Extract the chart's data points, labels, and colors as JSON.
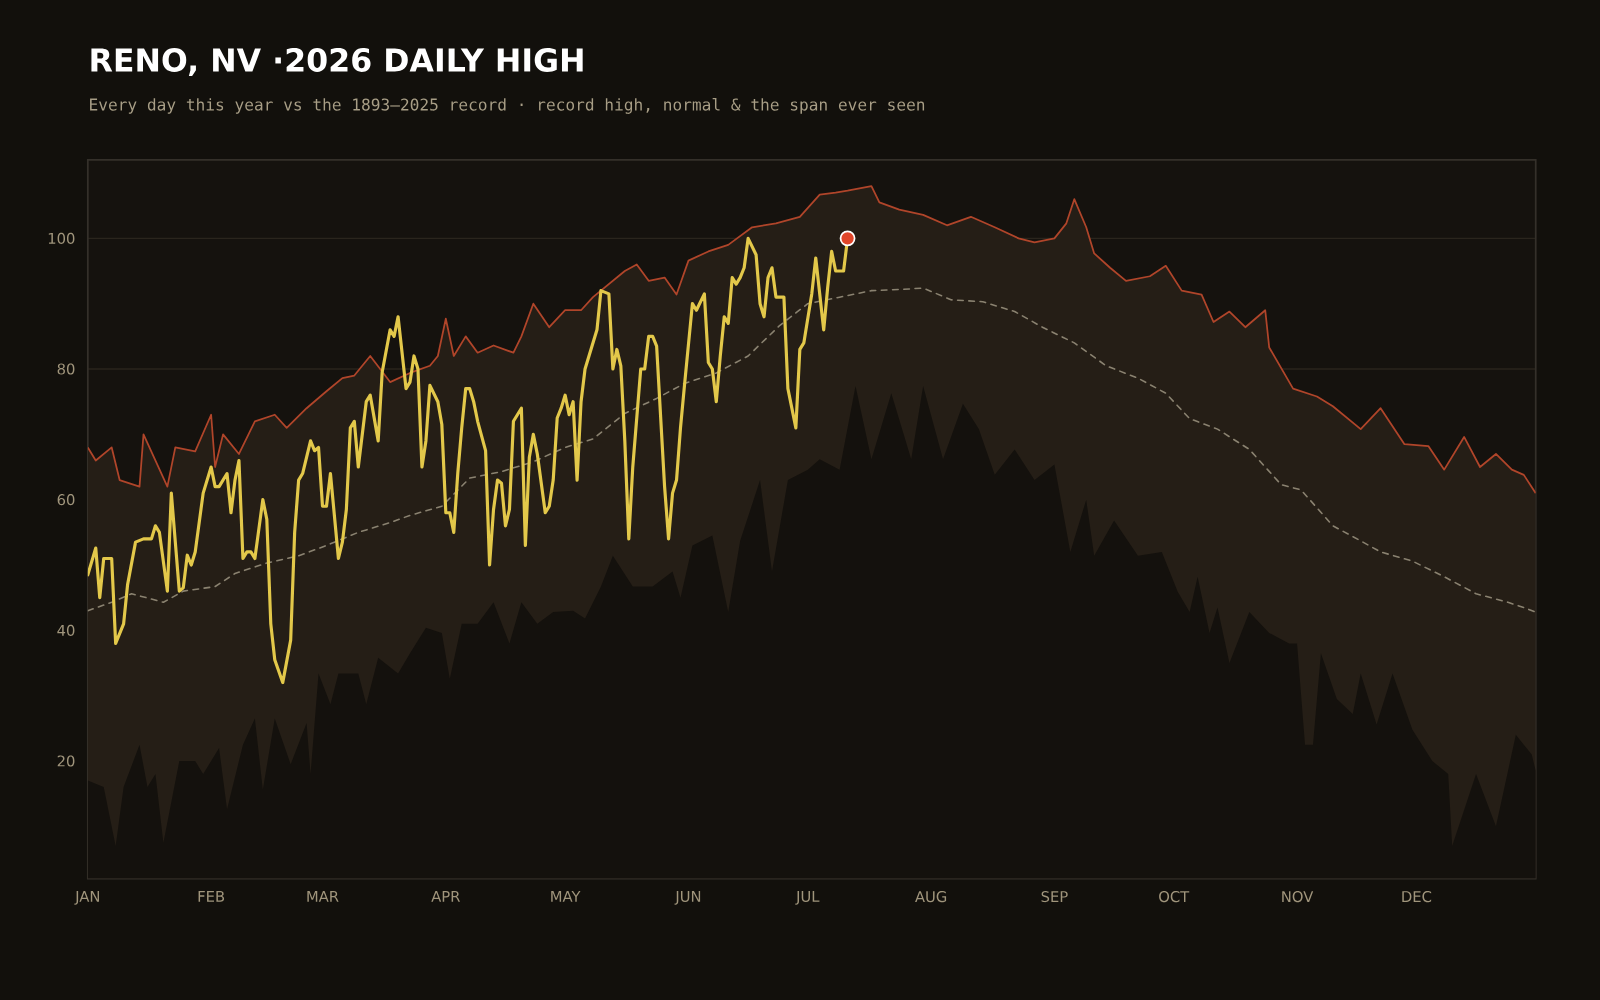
{
  "chart_data": {
    "type": "line",
    "title": "RENO, NV ·2026 DAILY HIGH",
    "subtitle": "Every day this year vs the 1893–2025 record · record high, normal & the span ever seen",
    "xlim": [
      "2026-01-01",
      "2026-12-31"
    ],
    "ylim": [
      2,
      112
    ],
    "xticks": [
      {
        "value": "2026-01-01",
        "label": "JAN"
      },
      {
        "value": "2026-02-01",
        "label": "FEB"
      },
      {
        "value": "2026-03-01",
        "label": "MAR"
      },
      {
        "value": "2026-04-01",
        "label": "APR"
      },
      {
        "value": "2026-05-01",
        "label": "MAY"
      },
      {
        "value": "2026-06-01",
        "label": "JUN"
      },
      {
        "value": "2026-07-01",
        "label": "JUL"
      },
      {
        "value": "2026-08-01",
        "label": "AUG"
      },
      {
        "value": "2026-09-01",
        "label": "SEP"
      },
      {
        "value": "2026-10-01",
        "label": "OCT"
      },
      {
        "value": "2026-11-01",
        "label": "NOV"
      },
      {
        "value": "2026-12-01",
        "label": "DEC"
      }
    ],
    "yticks": [
      20,
      40,
      60,
      80,
      100
    ],
    "grid": "y",
    "series": [
      {
        "type": "area",
        "color": "#b0452a",
        "x": [
          "2026-01-01",
          "2026-01-03",
          "2026-01-07",
          "2026-01-09",
          "2026-01-14",
          "2026-01-15",
          "2026-01-18",
          "2026-01-21",
          "2026-01-23",
          "2026-01-28",
          "2026-02-01",
          "2026-02-02",
          "2026-02-04",
          "2026-02-08",
          "2026-02-12",
          "2026-02-17",
          "2026-02-20",
          "2026-02-25",
          "2026-03-02",
          "2026-03-06",
          "2026-03-09",
          "2026-03-13",
          "2026-03-18",
          "2026-03-23",
          "2026-03-28",
          "2026-03-30",
          "2026-04-01",
          "2026-04-03",
          "2026-04-06",
          "2026-04-09",
          "2026-04-13",
          "2026-04-18",
          "2026-04-20",
          "2026-04-23",
          "2026-04-27",
          "2026-05-01",
          "2026-05-05",
          "2026-05-08",
          "2026-05-16",
          "2026-05-19",
          "2026-05-22",
          "2026-05-26",
          "2026-05-29",
          "2026-06-01",
          "2026-06-06",
          "2026-06-11",
          "2026-06-17",
          "2026-06-23",
          "2026-06-29",
          "2026-07-04",
          "2026-07-08",
          "2026-07-11",
          "2026-07-17",
          "2026-07-19",
          "2026-07-24",
          "2026-07-30",
          "2026-08-05",
          "2026-08-11",
          "2026-08-17",
          "2026-08-23",
          "2026-08-27",
          "2026-09-01",
          "2026-09-04",
          "2026-09-06",
          "2026-09-09",
          "2026-09-11",
          "2026-09-15",
          "2026-09-19",
          "2026-09-25",
          "2026-09-29",
          "2026-10-03",
          "2026-10-08",
          "2026-10-11",
          "2026-10-15",
          "2026-10-19",
          "2026-10-24",
          "2026-10-25",
          "2026-10-31",
          "2026-11-06",
          "2026-11-10",
          "2026-11-17",
          "2026-11-22",
          "2026-11-28",
          "2026-12-04",
          "2026-12-08",
          "2026-12-13",
          "2026-12-17",
          "2026-12-21",
          "2026-12-25",
          "2026-12-28",
          "2026-12-31"
        ],
        "values": [
          68,
          66,
          68,
          63,
          62,
          70,
          66,
          62,
          68,
          67.4,
          73,
          65,
          70,
          67,
          72,
          73,
          71,
          74,
          76.6,
          78.6,
          79,
          82,
          78,
          79.4,
          80.5,
          82,
          87.7,
          82,
          85,
          82.5,
          83.6,
          82.5,
          85,
          90,
          86.4,
          89,
          89,
          91,
          95,
          96,
          93.5,
          94,
          91.4,
          96.6,
          98,
          99,
          101.7,
          102.3,
          103.3,
          106.7,
          107,
          107.3,
          108,
          105.5,
          104.4,
          103.6,
          102,
          103.3,
          101.7,
          100,
          99.4,
          100,
          102.3,
          106,
          101.7,
          97.7,
          95.5,
          93.5,
          94.2,
          95.8,
          92,
          91.4,
          87.2,
          88.8,
          86.4,
          89,
          83.3,
          77,
          75.8,
          74.3,
          70.8,
          74,
          68.5,
          68.2,
          64.6,
          69.6,
          65,
          67,
          64.6,
          63.8,
          61
        ]
      },
      {
        "type": "area",
        "color": "#14110d",
        "x": [
          "2026-01-01",
          "2026-01-05",
          "2026-01-08",
          "2026-01-10",
          "2026-01-14",
          "2026-01-16",
          "2026-01-18",
          "2026-01-20",
          "2026-01-24",
          "2026-01-28",
          "2026-01-30",
          "2026-02-03",
          "2026-02-05",
          "2026-02-09",
          "2026-02-12",
          "2026-02-14",
          "2026-02-17",
          "2026-02-21",
          "2026-02-25",
          "2026-02-26",
          "2026-02-28",
          "2026-03-03",
          "2026-03-05",
          "2026-03-10",
          "2026-03-12",
          "2026-03-15",
          "2026-03-20",
          "2026-03-23",
          "2026-03-27",
          "2026-03-31",
          "2026-04-02",
          "2026-04-05",
          "2026-04-09",
          "2026-04-13",
          "2026-04-17",
          "2026-04-20",
          "2026-04-24",
          "2026-04-28",
          "2026-05-03",
          "2026-05-06",
          "2026-05-10",
          "2026-05-13",
          "2026-05-18",
          "2026-05-23",
          "2026-05-28",
          "2026-05-30",
          "2026-06-02",
          "2026-06-07",
          "2026-06-11",
          "2026-06-14",
          "2026-06-19",
          "2026-06-22",
          "2026-06-26",
          "2026-07-01",
          "2026-07-04",
          "2026-07-09",
          "2026-07-13",
          "2026-07-17",
          "2026-07-22",
          "2026-07-27",
          "2026-07-30",
          "2026-08-04",
          "2026-08-09",
          "2026-08-13",
          "2026-08-17",
          "2026-08-22",
          "2026-08-27",
          "2026-09-01",
          "2026-09-05",
          "2026-09-09",
          "2026-09-11",
          "2026-09-16",
          "2026-09-22",
          "2026-09-28",
          "2026-10-02",
          "2026-10-05",
          "2026-10-07",
          "2026-10-10",
          "2026-10-12",
          "2026-10-15",
          "2026-10-20",
          "2026-10-25",
          "2026-10-30",
          "2026-11-01",
          "2026-11-03",
          "2026-11-05",
          "2026-11-07",
          "2026-11-11",
          "2026-11-15",
          "2026-11-17",
          "2026-11-21",
          "2026-11-25",
          "2026-11-30",
          "2026-12-05",
          "2026-12-09",
          "2026-12-10",
          "2026-12-16",
          "2026-12-21",
          "2026-12-26",
          "2026-12-30",
          "2026-12-31"
        ],
        "values": [
          17,
          16,
          7,
          16,
          22.5,
          16,
          18,
          7.5,
          20,
          20,
          18,
          22,
          12.6,
          22.5,
          26.5,
          15.6,
          26.5,
          19.5,
          25.8,
          18,
          33.4,
          28.7,
          33.4,
          33.4,
          28.7,
          35.8,
          33.4,
          36.5,
          40.4,
          39.6,
          32.6,
          41,
          41,
          44.3,
          38,
          44.3,
          41,
          42.8,
          43,
          41.8,
          46.7,
          51.4,
          46.7,
          46.7,
          49,
          45,
          53,
          54.5,
          42.8,
          53.7,
          63,
          49,
          63,
          64.6,
          66.2,
          64.6,
          77.4,
          66.2,
          76.3,
          66.2,
          77.4,
          66.2,
          74.7,
          70.8,
          63.8,
          67.7,
          63,
          65.4,
          52,
          60,
          51.4,
          56.8,
          51.4,
          52,
          45.9,
          42.8,
          48.2,
          39.6,
          43.5,
          35,
          42.8,
          39.6,
          38,
          38,
          22.5,
          22.5,
          36.5,
          29.5,
          27.2,
          33.4,
          25.6,
          33.4,
          24.8,
          20,
          18,
          7,
          18,
          10,
          24,
          21,
          18.5
        ]
      },
      {
        "color": "#8a8270",
        "line_style": "dashed",
        "x": [
          "2026-01-01",
          "2026-01-07",
          "2026-01-12",
          "2026-01-20",
          "2026-01-25",
          "2026-02-02",
          "2026-02-07",
          "2026-02-15",
          "2026-02-23",
          "2026-03-02",
          "2026-03-10",
          "2026-03-18",
          "2026-03-23",
          "2026-03-31",
          "2026-04-07",
          "2026-04-15",
          "2026-04-23",
          "2026-05-01",
          "2026-05-08",
          "2026-05-16",
          "2026-05-24",
          "2026-05-31",
          "2026-06-08",
          "2026-06-16",
          "2026-06-24",
          "2026-07-01",
          "2026-07-09",
          "2026-07-17",
          "2026-07-25",
          "2026-07-30",
          "2026-08-06",
          "2026-08-14",
          "2026-08-22",
          "2026-08-29",
          "2026-09-06",
          "2026-09-14",
          "2026-09-22",
          "2026-09-29",
          "2026-10-05",
          "2026-10-12",
          "2026-10-20",
          "2026-10-28",
          "2026-11-02",
          "2026-11-10",
          "2026-11-17",
          "2026-11-22",
          "2026-11-30",
          "2026-12-08",
          "2026-12-16",
          "2026-12-24",
          "2026-12-28",
          "2026-12-31"
        ],
        "values": [
          43,
          44.3,
          45.6,
          44.3,
          46,
          46.7,
          48.7,
          50.3,
          51.4,
          53,
          55,
          56.5,
          57.6,
          59,
          63.3,
          64.3,
          65.8,
          68,
          69.3,
          73.2,
          75.5,
          77.8,
          79.4,
          82,
          86.7,
          90,
          91,
          92,
          92.2,
          92.4,
          90.6,
          90.3,
          88.8,
          86.4,
          84,
          80.5,
          78.6,
          76.3,
          72.4,
          70.8,
          67.7,
          62.3,
          61.5,
          56,
          53.7,
          52,
          50.6,
          48.2,
          45.6,
          44.3,
          43.5,
          42.8
        ]
      },
      {
        "color": "#e3c84a",
        "x": [
          "2026-01-01",
          "2026-01-03",
          "2026-01-04",
          "2026-01-05",
          "2026-01-07",
          "2026-01-08",
          "2026-01-10",
          "2026-01-11",
          "2026-01-13",
          "2026-01-15",
          "2026-01-17",
          "2026-01-18",
          "2026-01-19",
          "2026-01-21",
          "2026-01-22",
          "2026-01-24",
          "2026-01-25",
          "2026-01-26",
          "2026-01-27",
          "2026-01-28",
          "2026-01-30",
          "2026-02-01",
          "2026-02-02",
          "2026-02-03",
          "2026-02-05",
          "2026-02-06",
          "2026-02-07",
          "2026-02-08",
          "2026-02-09",
          "2026-02-10",
          "2026-02-11",
          "2026-02-12",
          "2026-02-14",
          "2026-02-15",
          "2026-02-16",
          "2026-02-17",
          "2026-02-19",
          "2026-02-21",
          "2026-02-22",
          "2026-02-23",
          "2026-02-24",
          "2026-02-26",
          "2026-02-27",
          "2026-02-28",
          "2026-03-01",
          "2026-03-02",
          "2026-03-03",
          "2026-03-05",
          "2026-03-06",
          "2026-03-07",
          "2026-03-08",
          "2026-03-09",
          "2026-03-10",
          "2026-03-12",
          "2026-03-13",
          "2026-03-15",
          "2026-03-16",
          "2026-03-18",
          "2026-03-19",
          "2026-03-20",
          "2026-03-22",
          "2026-03-23",
          "2026-03-24",
          "2026-03-25",
          "2026-03-26",
          "2026-03-27",
          "2026-03-28",
          "2026-03-30",
          "2026-03-31",
          "2026-04-01",
          "2026-04-02",
          "2026-04-03",
          "2026-04-04",
          "2026-04-05",
          "2026-04-06",
          "2026-04-07",
          "2026-04-08",
          "2026-04-09",
          "2026-04-11",
          "2026-04-12",
          "2026-04-13",
          "2026-04-14",
          "2026-04-15",
          "2026-04-16",
          "2026-04-17",
          "2026-04-18",
          "2026-04-20",
          "2026-04-21",
          "2026-04-22",
          "2026-04-23",
          "2026-04-24",
          "2026-04-26",
          "2026-04-27",
          "2026-04-28",
          "2026-04-29",
          "2026-04-30",
          "2026-05-01",
          "2026-05-02",
          "2026-05-03",
          "2026-05-04",
          "2026-05-05",
          "2026-05-06",
          "2026-05-09",
          "2026-05-10",
          "2026-05-12",
          "2026-05-13",
          "2026-05-14",
          "2026-05-15",
          "2026-05-16",
          "2026-05-17",
          "2026-05-18",
          "2026-05-20",
          "2026-05-21",
          "2026-05-22",
          "2026-05-23",
          "2026-05-24",
          "2026-05-26",
          "2026-05-27",
          "2026-05-28",
          "2026-05-29",
          "2026-05-30",
          "2026-05-31",
          "2026-06-02",
          "2026-06-03",
          "2026-06-05",
          "2026-06-06",
          "2026-06-07",
          "2026-06-08",
          "2026-06-09",
          "2026-06-10",
          "2026-06-11",
          "2026-06-12",
          "2026-06-13",
          "2026-06-14",
          "2026-06-15",
          "2026-06-16",
          "2026-06-18",
          "2026-06-19",
          "2026-06-20",
          "2026-06-21",
          "2026-06-22",
          "2026-06-23",
          "2026-06-25",
          "2026-06-26",
          "2026-06-28",
          "2026-06-29",
          "2026-06-30",
          "2026-07-02",
          "2026-07-03",
          "2026-07-05",
          "2026-07-06",
          "2026-07-07",
          "2026-07-08",
          "2026-07-10",
          "2026-07-11"
        ],
        "values": [
          48.5,
          52.6,
          45,
          51,
          51,
          38,
          41,
          47,
          53.5,
          54,
          54,
          56,
          55,
          46,
          61,
          46,
          46.5,
          51.5,
          50,
          52,
          61,
          65,
          62,
          62,
          64,
          58,
          63,
          66,
          51,
          52,
          52,
          51,
          60,
          57,
          41,
          35.5,
          32,
          38.5,
          55,
          63,
          64,
          69,
          67.5,
          68,
          59,
          59,
          64,
          51,
          53.5,
          58.5,
          71,
          72,
          65,
          75,
          76,
          69,
          79.5,
          86,
          85,
          88,
          77,
          78,
          82,
          80,
          65,
          69,
          77.5,
          75,
          71.5,
          58,
          58,
          55,
          64,
          71,
          77,
          77,
          75,
          72,
          67.5,
          50,
          58.5,
          63,
          62.5,
          56,
          58.5,
          72,
          74,
          53,
          66.5,
          70,
          67,
          58,
          59,
          63,
          72.5,
          74,
          76,
          73,
          75,
          63,
          75,
          80,
          86,
          92,
          91.5,
          80,
          83,
          80.5,
          69,
          54,
          65,
          80,
          80,
          85,
          85,
          83.5,
          62,
          54,
          61,
          63,
          71,
          77.5,
          90,
          89,
          91.5,
          81,
          80,
          75,
          82,
          88,
          87,
          94,
          93,
          94,
          95.5,
          100,
          97.5,
          90,
          88,
          94,
          95.5,
          91,
          91,
          77,
          71,
          83,
          84,
          91.5,
          97,
          86,
          92.5,
          98,
          95,
          95,
          100
        ]
      },
      {
        "type": "scatter",
        "color": "#e0452a",
        "x": [
          "2026-07-11"
        ],
        "values": [
          100
        ]
      }
    ]
  }
}
